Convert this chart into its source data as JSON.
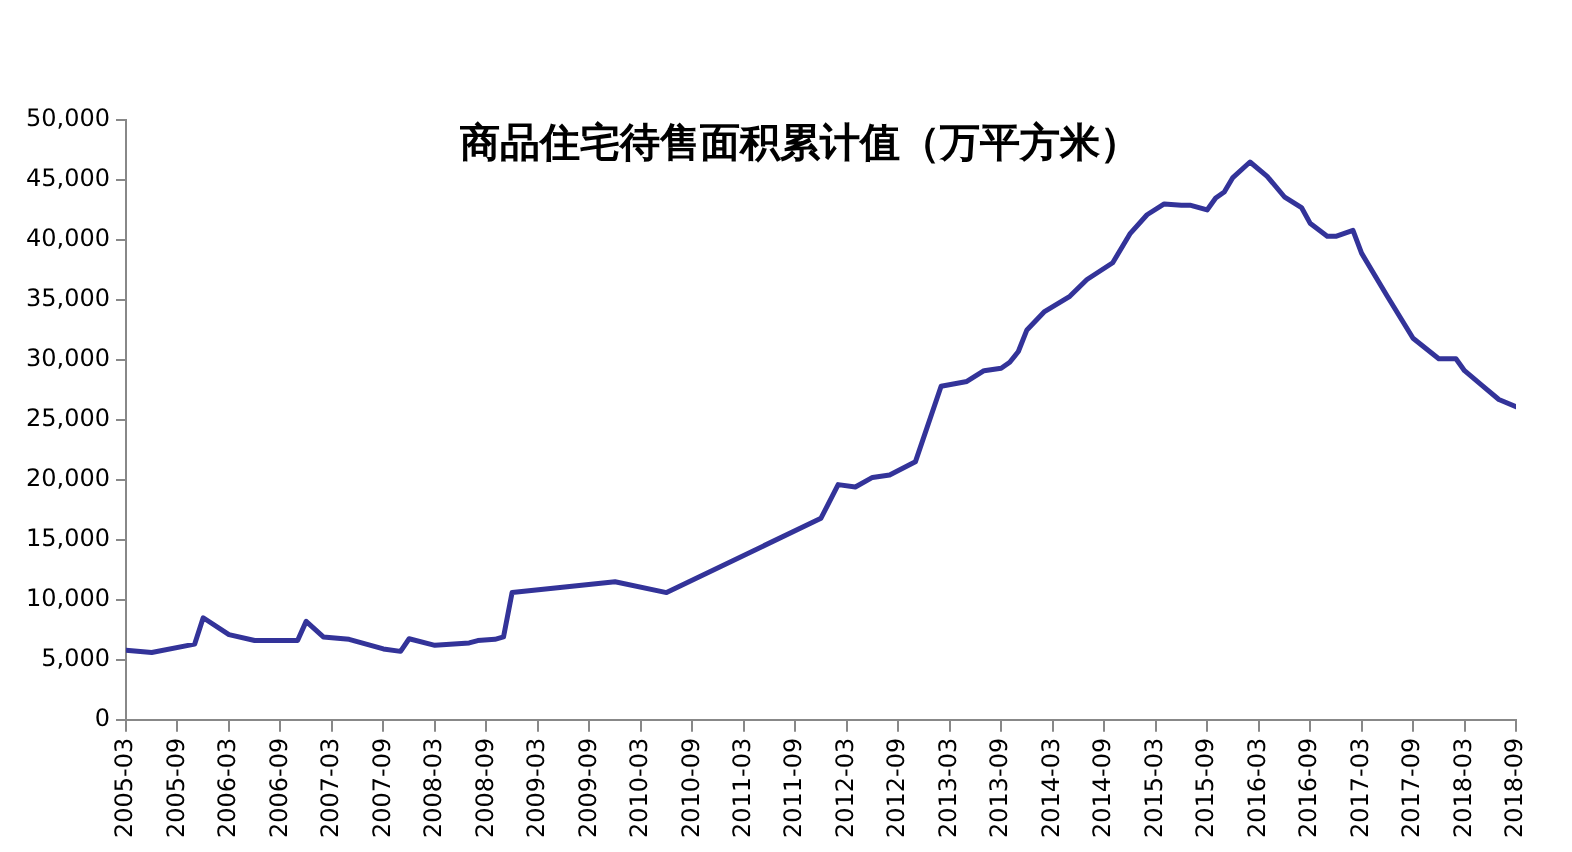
{
  "chart_data": {
    "type": "line",
    "title": "商品住宅待售面积累计值（万平方米）",
    "x": [
      "2005-03",
      "2005-06",
      "2005-11",
      "2005-12",
      "2006-03",
      "2006-06",
      "2006-11",
      "2006-12",
      "2007-02",
      "2007-05",
      "2007-09",
      "2007-11",
      "2007-12",
      "2008-03",
      "2008-07",
      "2008-08",
      "2008-10",
      "2008-11",
      "2008-12",
      "2009-12",
      "2010-06",
      "2011-12",
      "2012-02",
      "2012-04",
      "2012-06",
      "2012-08",
      "2012-11",
      "2013-02",
      "2013-05",
      "2013-07",
      "2013-09",
      "2013-10",
      "2013-11",
      "2013-12",
      "2014-02",
      "2014-05",
      "2014-07",
      "2014-10",
      "2014-12",
      "2015-02",
      "2015-04",
      "2015-06",
      "2015-07",
      "2015-09",
      "2015-10",
      "2015-11",
      "2015-12",
      "2016-02",
      "2016-04",
      "2016-06",
      "2016-08",
      "2016-09",
      "2016-11",
      "2016-12",
      "2017-02",
      "2017-03",
      "2017-06",
      "2017-09",
      "2017-12",
      "2018-02",
      "2018-03",
      "2018-05",
      "2018-07",
      "2018-09"
    ],
    "series": [
      {
        "color": "#333399",
        "values": [
          5800,
          5600,
          6300,
          8500,
          7100,
          6600,
          6600,
          8200,
          6900,
          6700,
          5900,
          5700,
          6750,
          6200,
          6400,
          6600,
          6700,
          6900,
          10600,
          11500,
          10600,
          16800,
          19600,
          19400,
          20200,
          20400,
          21500,
          27800,
          28200,
          29100,
          29300,
          29800,
          30700,
          32500,
          34000,
          35300,
          36700,
          38100,
          40500,
          42100,
          43000,
          42900,
          42900,
          42500,
          43500,
          44000,
          45200,
          46500,
          45300,
          43600,
          42700,
          41400,
          40300,
          40300,
          40800,
          38900,
          35300,
          31800,
          30100,
          30100,
          29100,
          27900,
          26700,
          26100
        ]
      }
    ],
    "xlim": [
      "2005-03",
      "2018-09"
    ],
    "xticks": [
      "2005-03",
      "2005-09",
      "2006-03",
      "2006-09",
      "2007-03",
      "2007-09",
      "2008-03",
      "2008-09",
      "2009-03",
      "2009-09",
      "2010-03",
      "2010-09",
      "2011-03",
      "2011-09",
      "2012-03",
      "2012-09",
      "2013-03",
      "2013-09",
      "2014-03",
      "2014-09",
      "2015-03",
      "2015-09",
      "2016-03",
      "2016-09",
      "2017-03",
      "2017-09",
      "2018-03",
      "2018-09"
    ],
    "ylim": [
      0,
      50000
    ],
    "yticks": [
      0,
      {
        "value": 5000,
        "label": "5,000"
      },
      {
        "value": 10000,
        "label": "10,000"
      },
      {
        "value": 15000,
        "label": "15,000"
      },
      {
        "value": 20000,
        "label": "20,000"
      },
      {
        "value": 25000,
        "label": "25,000"
      },
      {
        "value": 30000,
        "label": "30,000"
      },
      {
        "value": 35000,
        "label": "35,000"
      },
      {
        "value": 40000,
        "label": "40,000"
      },
      {
        "value": 45000,
        "label": "45,000"
      },
      {
        "value": 50000,
        "label": "50,000"
      }
    ],
    "grid": false,
    "legend": false,
    "marker": "none",
    "line_style": "solid"
  }
}
